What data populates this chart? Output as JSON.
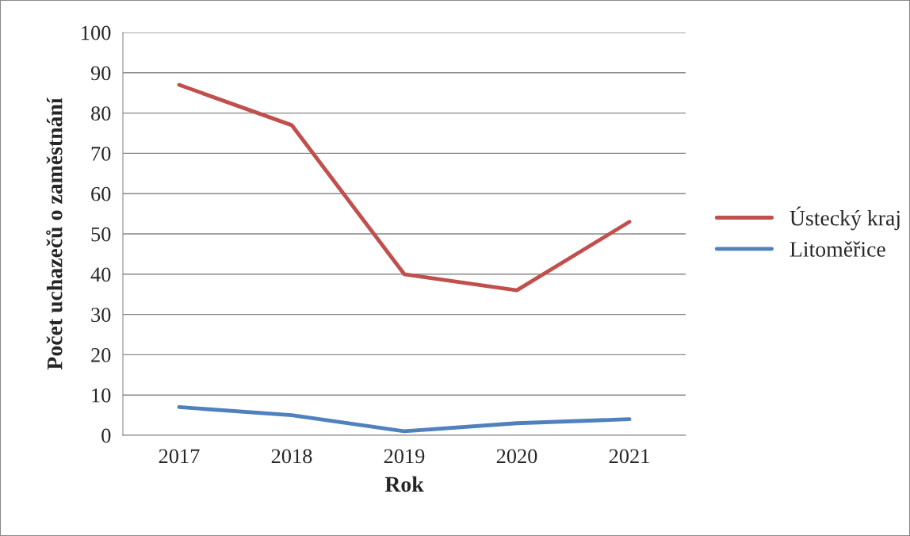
{
  "chart_data": {
    "type": "line",
    "xlabel": "Rok",
    "ylabel": "Počet uchazečů o zaměstnání",
    "categories": [
      "2017",
      "2018",
      "2019",
      "2020",
      "2021"
    ],
    "series": [
      {
        "name": "Ústecký kraj",
        "color": "#c0504d",
        "values": [
          87,
          77,
          40,
          36,
          53
        ]
      },
      {
        "name": "Litoměřice",
        "color": "#4f81bd",
        "values": [
          7,
          5,
          1,
          3,
          4
        ]
      }
    ],
    "ylim": [
      0,
      100
    ],
    "yticks": [
      0,
      10,
      20,
      30,
      40,
      50,
      60,
      70,
      80,
      90,
      100
    ],
    "grid": "y",
    "legend": "right",
    "marker": "none",
    "line_style": "solid"
  }
}
